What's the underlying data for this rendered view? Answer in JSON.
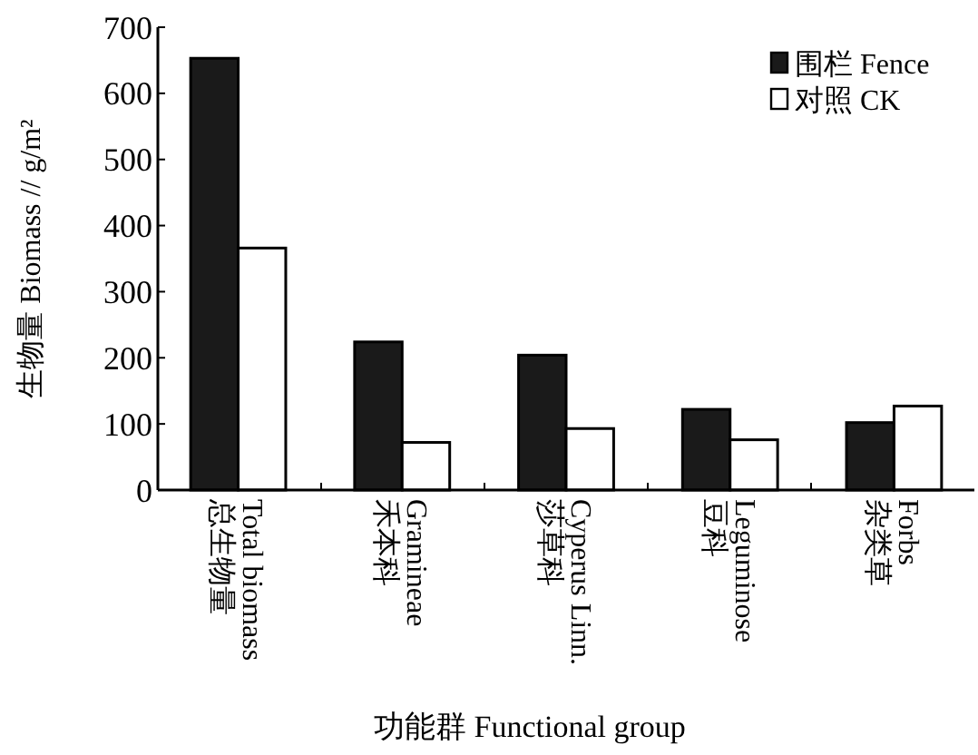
{
  "chart_data": {
    "type": "bar",
    "xlabel": "功能群 Functional group",
    "ylabel": "生物量 Biomass // g/m²",
    "categories": [
      "总生物量\nTotal biomass",
      "禾本科\nGramineae",
      "莎草科\nCyperus Linn.",
      "豆科\nLeguminose",
      "杂类草\nForbs"
    ],
    "series": [
      {
        "name": "围栏 Fence",
        "color": "#1a1a1a",
        "values": [
          653,
          224,
          204,
          122,
          102
        ]
      },
      {
        "name": "对照 CK",
        "color": "#ffffff",
        "values": [
          366,
          72,
          93,
          76,
          127
        ]
      }
    ],
    "ylim": [
      0,
      700
    ],
    "yticks": [
      0,
      100,
      200,
      300,
      400,
      500,
      600,
      700
    ],
    "grid": false,
    "legend": "top right"
  }
}
